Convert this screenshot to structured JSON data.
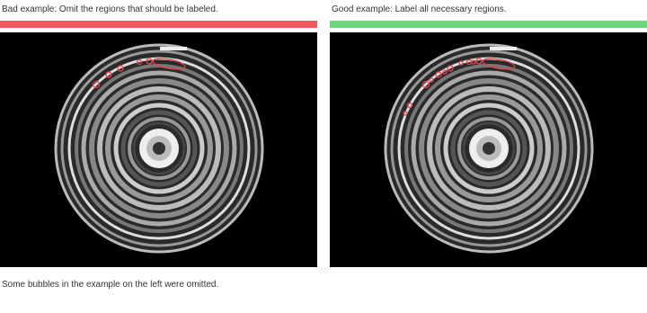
{
  "panels": [
    {
      "caption": "Bad example: Omit the regions that should be labeled."
    },
    {
      "caption": "Good example: Label all necessary regions."
    }
  ],
  "footnote": "Some bubbles in the example on the left were omitted."
}
